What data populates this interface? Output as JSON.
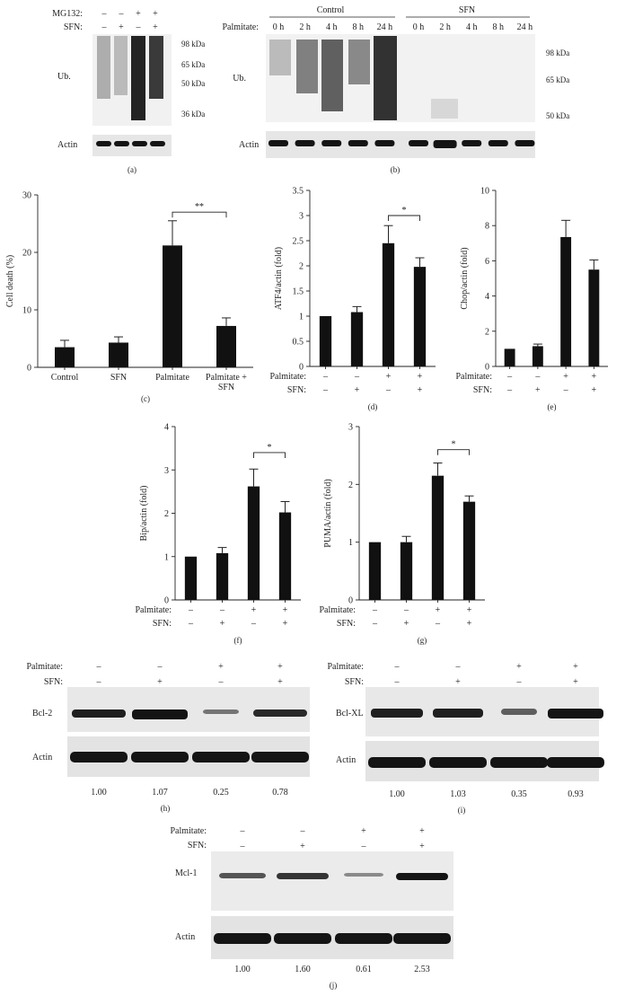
{
  "colors": {
    "bar": "#111111",
    "axis": "#222222",
    "text": "#222222",
    "blot_bg": "#e6e6e6",
    "band": "#141414"
  },
  "blots": {
    "a": {
      "panel": "(a)",
      "rows": [
        {
          "label": "MG132:",
          "signs": [
            "–",
            "–",
            "+",
            "+"
          ]
        },
        {
          "label": "SFN:",
          "signs": [
            "–",
            "+",
            "–",
            "+"
          ]
        }
      ],
      "markers": [
        "98 kDa",
        "65 kDa",
        "50 kDa",
        "36 kDa"
      ],
      "ub_label": "Ub.",
      "actin_label": "Actin"
    },
    "b": {
      "panel": "(b)",
      "group_control": "Control",
      "group_sfn": "SFN",
      "time_label": "Palmitate:",
      "times": [
        "0 h",
        "2 h",
        "4 h",
        "8 h",
        "24 h",
        "0 h",
        "2 h",
        "4 h",
        "8 h",
        "24 h"
      ],
      "markers": [
        "98 kDa",
        "65 kDa",
        "50 kDa"
      ],
      "ub_label": "Ub.",
      "actin_label": "Actin"
    },
    "h": {
      "panel": "(h)",
      "rows": [
        {
          "label": "Palmitate:",
          "signs": [
            "–",
            "–",
            "+",
            "+"
          ]
        },
        {
          "label": "SFN:",
          "signs": [
            "–",
            "+",
            "–",
            "+"
          ]
        }
      ],
      "protein_label": "Bcl-2",
      "actin_label": "Actin",
      "ratios": [
        "1.00",
        "1.07",
        "0.25",
        "0.78"
      ]
    },
    "i": {
      "panel": "(i)",
      "rows": [
        {
          "label": "Palmitate:",
          "signs": [
            "–",
            "–",
            "+",
            "+"
          ]
        },
        {
          "label": "SFN:",
          "signs": [
            "–",
            "+",
            "–",
            "+"
          ]
        }
      ],
      "protein_label": "Bcl-XL",
      "actin_label": "Actin",
      "ratios": [
        "1.00",
        "1.03",
        "0.35",
        "0.93"
      ]
    },
    "j": {
      "panel": "(j)",
      "rows": [
        {
          "label": "Palmitate:",
          "signs": [
            "–",
            "–",
            "+",
            "+"
          ]
        },
        {
          "label": "SFN:",
          "signs": [
            "–",
            "+",
            "–",
            "+"
          ]
        }
      ],
      "protein_label": "Mcl-1",
      "actin_label": "Actin",
      "ratios": [
        "1.00",
        "1.60",
        "0.61",
        "2.53"
      ]
    }
  },
  "chart_data": [
    {
      "id": "c",
      "type": "bar",
      "panel": "(c)",
      "ylabel": "Cell death (%)",
      "ylim": [
        0,
        30
      ],
      "yticks": [
        "0",
        "10",
        "20",
        "30"
      ],
      "categories": [
        "Control",
        "SFN",
        "Palmitate",
        "Palmitate +\nSFN"
      ],
      "values": [
        3.5,
        4.3,
        21.2,
        7.2
      ],
      "errors": [
        1.2,
        1.0,
        4.3,
        1.4
      ],
      "significance": {
        "from": 2,
        "to": 3,
        "label": "**",
        "y": 27
      }
    },
    {
      "id": "d",
      "type": "bar",
      "panel": "(d)",
      "ylabel": "ATF4/actin (fold)",
      "ylim": [
        0,
        3.5
      ],
      "yticks": [
        "0",
        "0.5",
        "1",
        "1.5",
        "2",
        "2.5",
        "3",
        "3.5"
      ],
      "values": [
        1.0,
        1.08,
        2.45,
        1.98
      ],
      "errors": [
        0.0,
        0.11,
        0.35,
        0.18
      ],
      "row_labels": [
        "Palmitate:",
        "SFN:"
      ],
      "signs": [
        [
          "–",
          "–",
          "+",
          "+"
        ],
        [
          "–",
          "+",
          "–",
          "+"
        ]
      ],
      "significance": {
        "from": 2,
        "to": 3,
        "label": "*",
        "y": 3.0
      }
    },
    {
      "id": "e",
      "type": "bar",
      "panel": "(e)",
      "ylabel": "Chop/actin (fold)",
      "ylim": [
        0,
        10
      ],
      "yticks": [
        "0",
        "2",
        "4",
        "6",
        "8",
        "10"
      ],
      "values": [
        1.0,
        1.15,
        7.35,
        5.5
      ],
      "errors": [
        0.0,
        0.12,
        0.95,
        0.55
      ],
      "row_labels": [
        "Palmitate:",
        "SFN:"
      ],
      "signs": [
        [
          "–",
          "–",
          "+",
          "+"
        ],
        [
          "–",
          "+",
          "–",
          "+"
        ]
      ]
    },
    {
      "id": "f",
      "type": "bar",
      "panel": "(f)",
      "ylabel": "Bip/actin (fold)",
      "ylim": [
        0,
        4
      ],
      "yticks": [
        "0",
        "1",
        "2",
        "3",
        "4"
      ],
      "values": [
        1.0,
        1.08,
        2.62,
        2.02
      ],
      "errors": [
        0.0,
        0.13,
        0.4,
        0.25
      ],
      "row_labels": [
        "Palmitate:",
        "SFN:"
      ],
      "signs": [
        [
          "–",
          "–",
          "+",
          "+"
        ],
        [
          "–",
          "+",
          "–",
          "+"
        ]
      ],
      "significance": {
        "from": 2,
        "to": 3,
        "label": "*",
        "y": 3.4
      }
    },
    {
      "id": "g",
      "type": "bar",
      "panel": "(g)",
      "ylabel": "PUMA/actin (fold)",
      "ylim": [
        0,
        3
      ],
      "yticks": [
        "0",
        "1",
        "2",
        "3"
      ],
      "values": [
        1.0,
        1.0,
        2.15,
        1.7
      ],
      "errors": [
        0.0,
        0.1,
        0.22,
        0.1
      ],
      "row_labels": [
        "Palmitate:",
        "SFN:"
      ],
      "signs": [
        [
          "–",
          "–",
          "+",
          "+"
        ],
        [
          "–",
          "+",
          "–",
          "+"
        ]
      ],
      "significance": {
        "from": 2,
        "to": 3,
        "label": "*",
        "y": 2.6
      }
    }
  ]
}
